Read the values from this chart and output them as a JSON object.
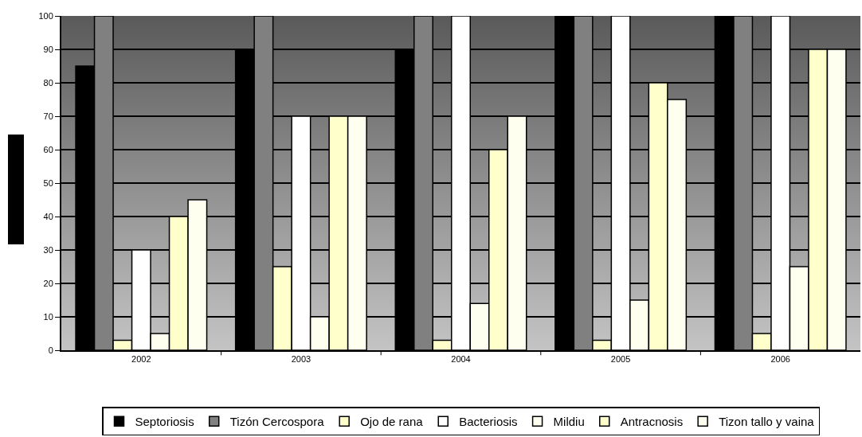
{
  "chart_data": {
    "type": "bar",
    "categories": [
      "2002",
      "2003",
      "2004",
      "2005",
      "2006"
    ],
    "series": [
      {
        "name": "Septoriosis",
        "color": "#000000",
        "values": [
          85,
          90,
          90,
          100,
          100
        ]
      },
      {
        "name": "Tizón Cercospora",
        "color": "#808080",
        "values": [
          100,
          100,
          100,
          100,
          100
        ]
      },
      {
        "name": "Ojo de rana",
        "color": "#ffffcc",
        "values": [
          3,
          25,
          3,
          3,
          5
        ]
      },
      {
        "name": "Bacteriosis",
        "color": "#ffffff",
        "values": [
          30,
          70,
          100,
          100,
          100
        ]
      },
      {
        "name": "Mildiu",
        "color": "#fffff0",
        "values": [
          5,
          10,
          14,
          15,
          25
        ]
      },
      {
        "name": "Antracnosis",
        "color": "#ffffcc",
        "values": [
          40,
          70,
          60,
          80,
          90
        ]
      },
      {
        "name": "Tizon tallo y vaina",
        "color": "#fffff0",
        "values": [
          45,
          70,
          70,
          75,
          90
        ]
      }
    ],
    "ylim": [
      0,
      100
    ],
    "yticks": [
      0,
      10,
      20,
      30,
      40,
      50,
      60,
      70,
      80,
      90,
      100
    ],
    "grid": "y",
    "legend": "bottom"
  }
}
